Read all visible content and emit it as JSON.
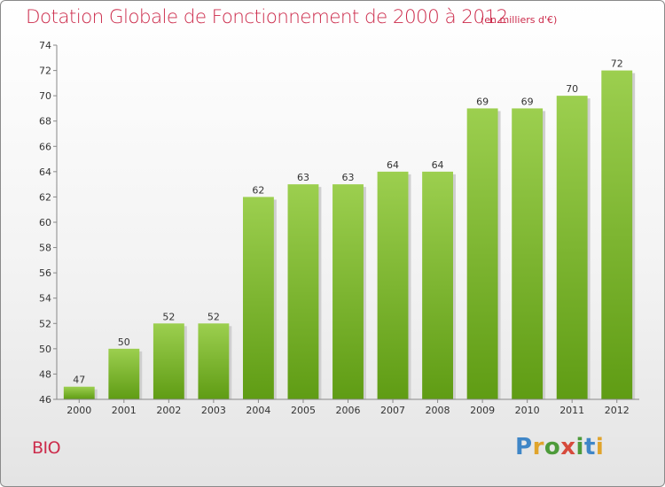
{
  "chart_data": {
    "type": "bar",
    "title": "Dotation Globale de Fonctionnement de 2000 à 2012",
    "subtitle": "(en milliers d'€)",
    "categories": [
      "2000",
      "2001",
      "2002",
      "2003",
      "2004",
      "2005",
      "2006",
      "2007",
      "2008",
      "2009",
      "2010",
      "2011",
      "2012"
    ],
    "values": [
      47,
      50,
      52,
      52,
      62,
      63,
      63,
      64,
      64,
      69,
      69,
      70,
      72
    ],
    "ylim": [
      46,
      74
    ],
    "yticks": [
      46,
      48,
      50,
      52,
      54,
      56,
      58,
      60,
      62,
      64,
      66,
      68,
      70,
      72,
      74
    ],
    "grid": false,
    "bar_color": "#7dbd34"
  },
  "commune": "BIO",
  "logo": {
    "text": "Proxiti"
  }
}
